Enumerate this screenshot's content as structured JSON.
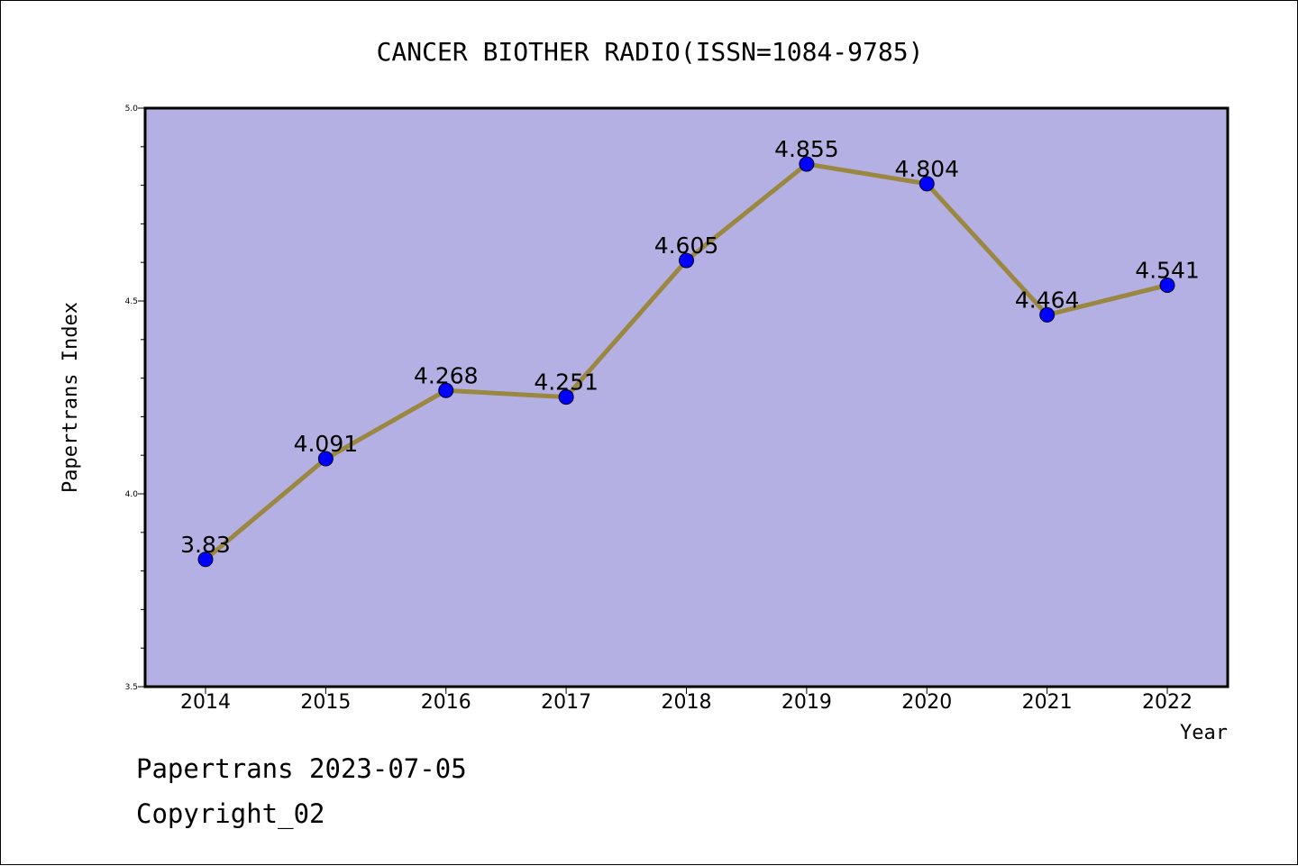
{
  "chart_data": {
    "type": "line",
    "title": "CANCER BIOTHER RADIO(ISSN=1084-9785)",
    "xlabel": "Year",
    "ylabel": "Papertrans Index",
    "categories": [
      "2014",
      "2015",
      "2016",
      "2017",
      "2018",
      "2019",
      "2020",
      "2021",
      "2022"
    ],
    "values": [
      3.83,
      4.091,
      4.268,
      4.251,
      4.605,
      4.855,
      4.804,
      4.464,
      4.541
    ],
    "data_labels": [
      "3.83",
      "4.091",
      "4.268",
      "4.251",
      "4.605",
      "4.855",
      "4.804",
      "4.464",
      "4.541"
    ],
    "ylim": [
      3.5,
      5.0
    ],
    "yticks": [
      "3.5",
      "4.0",
      "4.5",
      "5.0"
    ],
    "colors": {
      "plot_background": "#b5b0e3",
      "line": "#9a8740",
      "marker": "#0000ff"
    },
    "grid": false,
    "legend": "none"
  },
  "footer": {
    "date_line": "Papertrans 2023-07-05",
    "copyright": "Copyright_02"
  }
}
